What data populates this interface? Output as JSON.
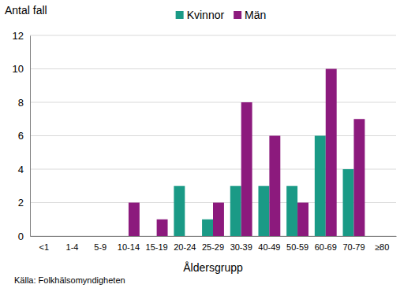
{
  "chart_data": {
    "type": "bar",
    "y_label": "Antal fall",
    "x_label": "Åldersgrupp",
    "source": "Källa: Folkhälsomyndigheten",
    "categories": [
      "<1",
      "1-4",
      "5-9",
      "10-14",
      "15-19",
      "20-24",
      "25-29",
      "30-39",
      "40-49",
      "50-59",
      "60-69",
      "70-79",
      "≥80"
    ],
    "series": [
      {
        "name": "Kvinnor",
        "color": "#1a9a86",
        "values": [
          0,
          0,
          0,
          0,
          0,
          3,
          1,
          3,
          3,
          3,
          6,
          4,
          0
        ]
      },
      {
        "name": "Män",
        "color": "#8c1a7d",
        "values": [
          0,
          0,
          0,
          2,
          1,
          0,
          2,
          8,
          6,
          2,
          10,
          7,
          0
        ]
      }
    ],
    "ylim": [
      0,
      12
    ],
    "yticks": [
      0,
      2,
      4,
      6,
      8,
      10,
      12
    ],
    "grid": true,
    "legend": "top"
  }
}
